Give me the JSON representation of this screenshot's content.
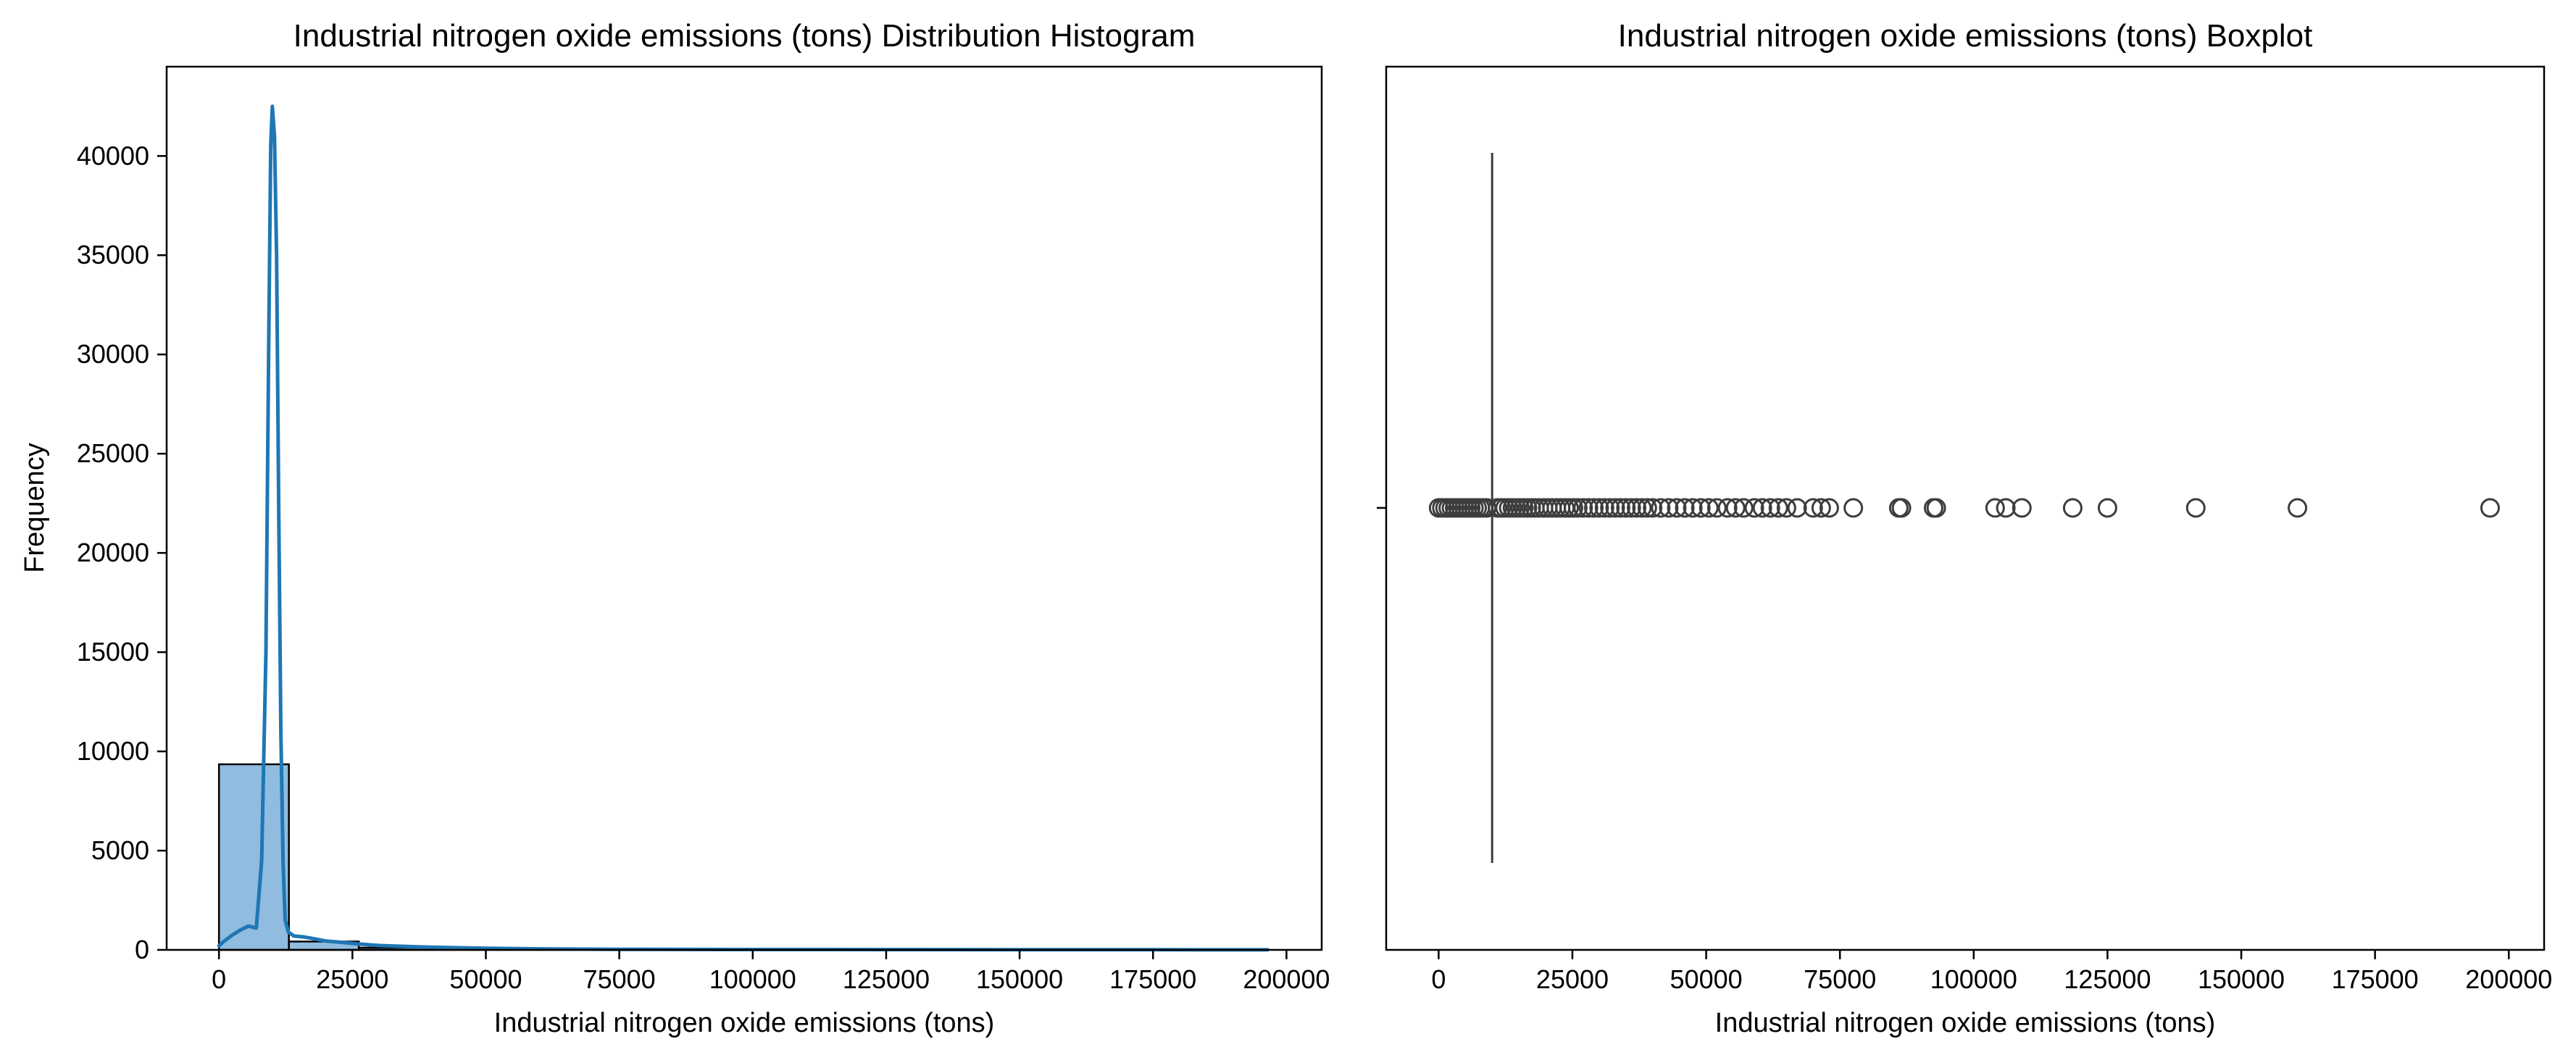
{
  "chart_data": [
    {
      "type": "bar",
      "subtype": "histogram with kde",
      "title": "Industrial nitrogen oxide emissions (tons) Distribution Histogram",
      "xlabel": "Industrial nitrogen oxide emissions (tons)",
      "ylabel": "Frequency",
      "xlim": [
        -9800,
        206600
      ],
      "ylim": [
        0,
        44500
      ],
      "xticks": [
        0,
        25000,
        50000,
        75000,
        100000,
        125000,
        150000,
        175000,
        200000
      ],
      "xtick_labels": [
        "0",
        "25000",
        "50000",
        "75000",
        "100000",
        "125000",
        "150000",
        "175000",
        "200000"
      ],
      "yticks": [
        0,
        5000,
        10000,
        15000,
        20000,
        25000,
        30000,
        35000,
        40000
      ],
      "ytick_labels": [
        "0",
        "5000",
        "10000",
        "15000",
        "20000",
        "25000",
        "30000",
        "35000",
        "40000"
      ],
      "bar_color": "#8fbcdf",
      "line_color": "#1f77b4",
      "bins": [
        {
          "x0": 0,
          "x1": 13100,
          "count": 9350
        },
        {
          "x0": 13100,
          "x1": 26200,
          "count": 420
        },
        {
          "x0": 26200,
          "x1": 39300,
          "count": 110
        },
        {
          "x0": 39300,
          "x1": 52400,
          "count": 40
        },
        {
          "x0": 52400,
          "x1": 65500,
          "count": 18
        },
        {
          "x0": 65500,
          "x1": 78600,
          "count": 8
        },
        {
          "x0": 78600,
          "x1": 91700,
          "count": 4
        },
        {
          "x0": 91700,
          "x1": 104800,
          "count": 4
        },
        {
          "x0": 104800,
          "x1": 117900,
          "count": 3
        },
        {
          "x0": 117900,
          "x1": 131000,
          "count": 2
        },
        {
          "x0": 131000,
          "x1": 144100,
          "count": 1
        },
        {
          "x0": 144100,
          "x1": 157200,
          "count": 0
        },
        {
          "x0": 157200,
          "x1": 170300,
          "count": 1
        },
        {
          "x0": 170300,
          "x1": 183400,
          "count": 0
        },
        {
          "x0": 183400,
          "x1": 196500,
          "count": 1
        }
      ],
      "kde": {
        "x": [
          0,
          1000,
          2500,
          4000,
          5500,
          7000,
          8000,
          8800,
          9300,
          9700,
          10000,
          10400,
          10800,
          11200,
          11600,
          12000,
          12400,
          13000,
          14000,
          16000,
          18000,
          20000,
          23000,
          26000,
          30000,
          35000,
          40000,
          50000,
          60000,
          75000,
          100000,
          125000,
          150000,
          175000,
          196500
        ],
        "y": [
          200,
          450,
          750,
          1000,
          1200,
          1100,
          4500,
          15000,
          30000,
          40500,
          42500,
          41000,
          35000,
          22000,
          11000,
          4500,
          1500,
          900,
          700,
          650,
          550,
          450,
          380,
          300,
          220,
          170,
          130,
          80,
          50,
          30,
          20,
          15,
          10,
          8,
          5
        ]
      }
    },
    {
      "type": "boxplot",
      "title": "Industrial nitrogen oxide emissions (tons) Boxplot",
      "xlabel": "Industrial nitrogen oxide emissions (tons)",
      "xlim": [
        -9800,
        206600
      ],
      "xticks": [
        0,
        25000,
        50000,
        75000,
        100000,
        125000,
        150000,
        175000,
        200000
      ],
      "xtick_labels": [
        "0",
        "25000",
        "50000",
        "75000",
        "100000",
        "125000",
        "150000",
        "175000",
        "200000"
      ],
      "median": 10000,
      "q1": 10000,
      "q3": 10000,
      "whisker_low": 10000,
      "whisker_high": 10000,
      "box_color": "#3d3d3d",
      "outliers": [
        0,
        600,
        1200,
        1800,
        2400,
        3000,
        3600,
        4200,
        4800,
        5400,
        6000,
        6600,
        7200,
        7800,
        8400,
        9000,
        11000,
        11700,
        12400,
        13100,
        13800,
        14500,
        15200,
        15900,
        16600,
        17300,
        18000,
        18800,
        19600,
        20400,
        21200,
        22000,
        22800,
        23600,
        24400,
        25200,
        26000,
        27000,
        28000,
        29000,
        30000,
        31000,
        32000,
        33000,
        34000,
        35000,
        36000,
        37000,
        38000,
        39000,
        40000,
        41500,
        43000,
        44500,
        46000,
        47500,
        49000,
        50500,
        52000,
        54000,
        55500,
        57000,
        59000,
        60500,
        62000,
        63500,
        65000,
        67000,
        70000,
        71500,
        73000,
        77500,
        86000,
        86500,
        92500,
        93000,
        104000,
        106000,
        109000,
        118500,
        125000,
        141500,
        160500,
        196500
      ]
    }
  ]
}
